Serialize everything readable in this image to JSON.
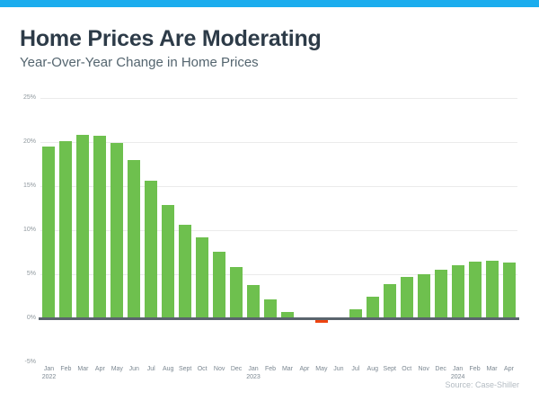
{
  "page": {
    "accent_bar_color": "#1BADEE",
    "background_color": "#FFFFFF"
  },
  "chart_data": {
    "type": "bar",
    "title": "Home Prices Are Moderating",
    "subtitle": "Year-Over-Year Change in Home Prices",
    "source": "Source: Case-Shiller",
    "xlabel": "",
    "ylabel": "",
    "grid": "horizontal",
    "legend": null,
    "ylim": [
      -5,
      25
    ],
    "yticks": [
      {
        "value": 25,
        "label": "25%"
      },
      {
        "value": 20,
        "label": "20%"
      },
      {
        "value": 15,
        "label": "15%"
      },
      {
        "value": 10,
        "label": "10%"
      },
      {
        "value": 5,
        "label": "5%"
      },
      {
        "value": 0,
        "label": "0%"
      },
      {
        "value": -5,
        "label": "-5%"
      }
    ],
    "categories": [
      "Jan",
      "Feb",
      "Mar",
      "Apr",
      "May",
      "Jun",
      "Jul",
      "Aug",
      "Sept",
      "Oct",
      "Nov",
      "Dec",
      "Jan",
      "Feb",
      "Mar",
      "Apr",
      "May",
      "Jun",
      "Jul",
      "Aug",
      "Sept",
      "Oct",
      "Nov",
      "Dec",
      "Jan",
      "Feb",
      "Mar",
      "Apr"
    ],
    "year_markers": {
      "0": "2022",
      "12": "2023",
      "24": "2024"
    },
    "values": [
      19.5,
      20.1,
      20.8,
      20.7,
      19.9,
      18.0,
      15.6,
      12.9,
      10.6,
      9.2,
      7.6,
      5.8,
      3.8,
      2.1,
      0.7,
      0.0,
      -0.5,
      0.0,
      1.0,
      2.5,
      3.9,
      4.7,
      5.0,
      5.5,
      6.0,
      6.4,
      6.5,
      6.3
    ],
    "colors": {
      "positive_bar": "#6EC04E",
      "negative_bar": "#ED4411",
      "axis_line": "#5A646D",
      "gridline": "#EBEBEB",
      "y_tick_label": "#8F989E",
      "x_tick_label": "#7B8791",
      "title": "#2D3B48",
      "subtitle": "#54656F",
      "source_text": "#B3BBC2"
    }
  }
}
